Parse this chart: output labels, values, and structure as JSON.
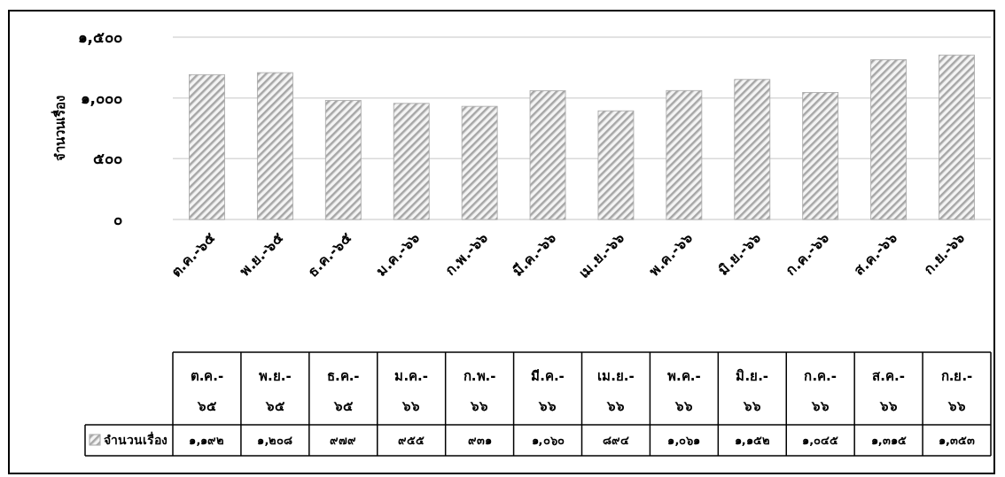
{
  "chart_data": {
    "type": "bar",
    "ylabel": "จำนวนเรื่อง",
    "categories": [
      "ต.ค.-๖๕",
      "พ.ย.-๖๕",
      "ธ.ค.-๖๕",
      "ม.ค.-๖๖",
      "ก.พ.-๖๖",
      "มี.ค.-๖๖",
      "เม.ย.-๖๖",
      "พ.ค.-๖๖",
      "มิ.ย.-๖๖",
      "ก.ค.-๖๖",
      "ส.ค.-๖๖",
      "ก.ย.-๖๖"
    ],
    "series": [
      {
        "name": "จำนวนเรื่อง",
        "color": "#a6a6a6",
        "values": [
          1192,
          1208,
          979,
          955,
          931,
          1060,
          894,
          1061,
          1152,
          1045,
          1315,
          1353
        ],
        "value_labels": [
          "๑,๑๙๒",
          "๑,๒๐๘",
          "๙๗๙",
          "๙๕๕",
          "๙๓๑",
          "๑,๐๖๐",
          "๘๙๔",
          "๑,๐๖๑",
          "๑,๑๕๒",
          "๑,๐๔๕",
          "๑,๓๑๕",
          "๑,๓๕๓"
        ]
      }
    ],
    "ylim": [
      0,
      1500
    ],
    "yticks": [
      {
        "value": 0,
        "label": "๐"
      },
      {
        "value": 500,
        "label": "๕๐๐"
      },
      {
        "value": 1000,
        "label": "๑,๐๐๐"
      },
      {
        "value": 1500,
        "label": "๑,๕๐๐"
      }
    ],
    "grid": "y",
    "legend": "bottom"
  }
}
